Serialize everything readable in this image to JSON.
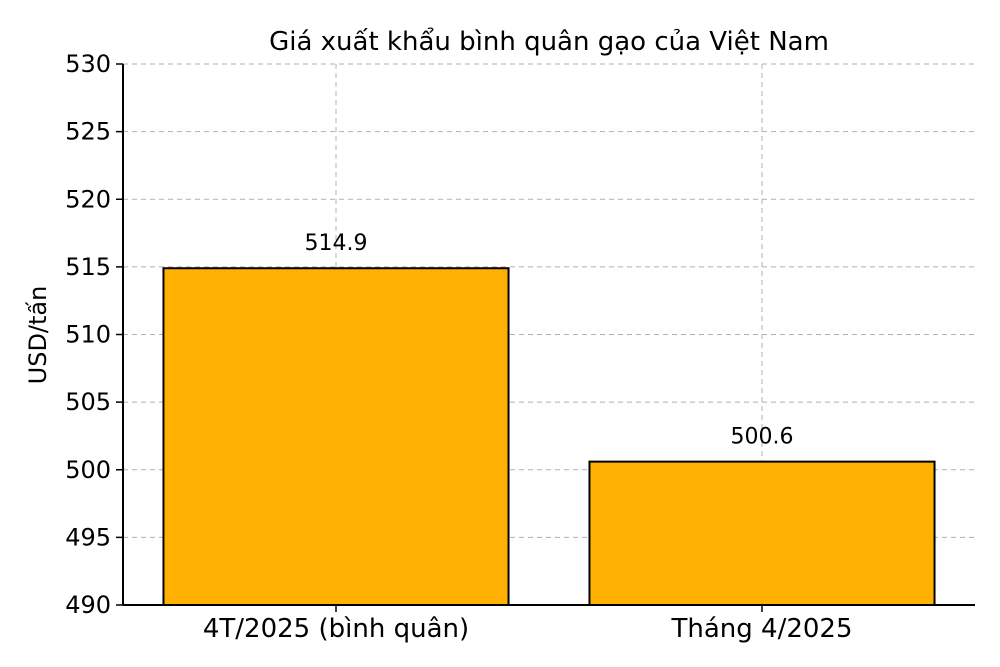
{
  "chart_data": {
    "type": "bar",
    "title": "Giá xuất khẩu bình quân gạo của Việt Nam",
    "xlabel": "",
    "ylabel": "USD/tấn",
    "categories": [
      "4T/2025 (bình quân)",
      "Tháng 4/2025"
    ],
    "values": [
      514.9,
      500.6
    ],
    "data_labels": [
      "514.9",
      "500.6"
    ],
    "ylim": [
      490,
      530
    ],
    "yticks": [
      490,
      495,
      500,
      505,
      510,
      515,
      520,
      525,
      530
    ],
    "grid": true,
    "bar_color": "#FFB000"
  }
}
